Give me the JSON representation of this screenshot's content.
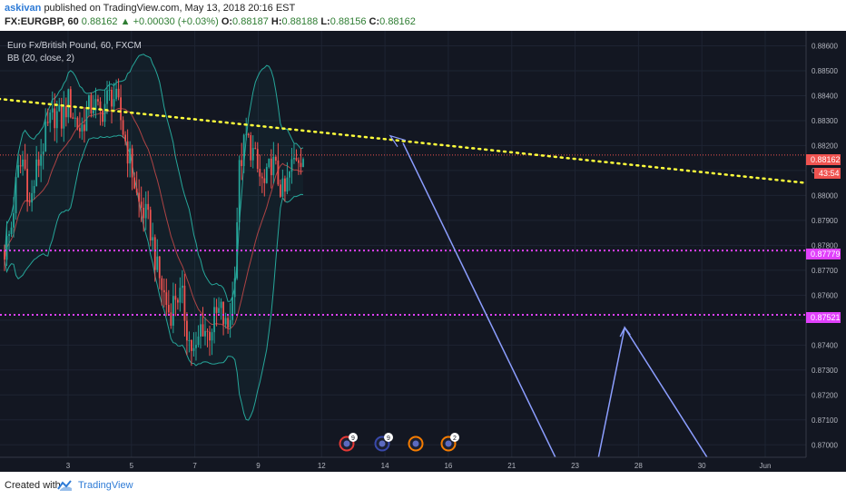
{
  "header": {
    "author": "askivan",
    "published": "published on TradingView.com, May 13, 2018 20:16 EST",
    "symbol": "FX:EURGBP, 60",
    "last": "0.88162",
    "change": "+0.00030 (+0.03%)",
    "o_label": "O:",
    "o_val": "0.88187",
    "h_label": "H:",
    "h_val": "0.88188",
    "l_label": "L:",
    "l_val": "0.88156",
    "c_label": "C:",
    "c_val": "0.88162"
  },
  "legend": {
    "instrument": "Euro Fx/British Pound, 60, FXCM",
    "indicator": "BB (20, close, 2)"
  },
  "footer": {
    "created_with": "Created with",
    "brand": "TradingView"
  },
  "colors": {
    "background": "#131722",
    "up": "#26a69a",
    "down": "#ef5350",
    "trend": "#ffff3b",
    "level": "#e040fb",
    "projection": "#8c9eff",
    "bands": "#26a69a",
    "basis": "#ef5350"
  },
  "price_tags": {
    "current": "0.88162",
    "countdown": "43:54",
    "level1": "0.87779",
    "level2": "0.87521"
  },
  "events": [
    {
      "count": "9",
      "color": "#e53935"
    },
    {
      "count": "9",
      "color": "#3949ab"
    },
    {
      "count": "",
      "color": "#f57c00"
    },
    {
      "count": "2",
      "color": "#f57c00"
    }
  ],
  "chart_data": {
    "type": "candlestick",
    "title": "Euro Fx/British Pound, 60, FXCM",
    "xlabel": "",
    "ylabel": "",
    "ylim": [
      0.8695,
      0.8866
    ],
    "y_ticks": [
      "0.88600",
      "0.88500",
      "0.88400",
      "0.88300",
      "0.88200",
      "0.88100",
      "0.88000",
      "0.87900",
      "0.87800",
      "0.87700",
      "0.87600",
      "0.87500",
      "0.87400",
      "0.87300",
      "0.87200",
      "0.87100",
      "0.87000"
    ],
    "x_ticks": [
      "3",
      "5",
      "7",
      "9",
      "12",
      "14",
      "16",
      "21",
      "23",
      "28",
      "30",
      "Jun"
    ],
    "price_path": [
      0.8778,
      0.8786,
      0.8808,
      0.8815,
      0.8795,
      0.881,
      0.882,
      0.8828,
      0.8833,
      0.883,
      0.8838,
      0.8831,
      0.8826,
      0.8834,
      0.8837,
      0.8832,
      0.8838,
      0.8841,
      0.8834,
      0.8822,
      0.8811,
      0.8797,
      0.8793,
      0.8786,
      0.877,
      0.8761,
      0.8752,
      0.8761,
      0.8758,
      0.8742,
      0.8735,
      0.8749,
      0.8744,
      0.875,
      0.8754,
      0.8745,
      0.876,
      0.8812,
      0.8823,
      0.8818,
      0.8808,
      0.8803,
      0.8814,
      0.8807,
      0.8799,
      0.881,
      0.8817,
      0.8816
    ],
    "levels": [
      {
        "name": "support-1",
        "value": 0.87779
      },
      {
        "name": "support-2",
        "value": 0.87521
      }
    ],
    "current_price": 0.88162,
    "trendline": {
      "from": [
        -0.01,
        0.8839
      ],
      "to": [
        1.0,
        0.8805
      ]
    },
    "projection": [
      [
        0.5,
        0.8821
      ],
      [
        0.695,
        0.8691
      ],
      [
        0.74,
        0.8691
      ],
      [
        0.775,
        0.8747
      ],
      [
        0.885,
        0.8691
      ]
    ]
  }
}
